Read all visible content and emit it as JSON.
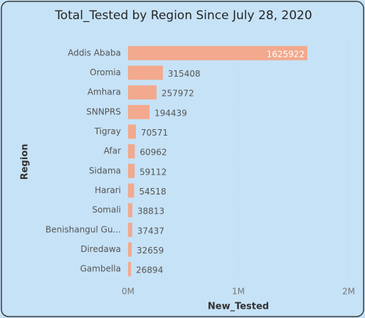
{
  "chart_data": {
    "type": "bar",
    "orientation": "horizontal",
    "title": "Total_Tested by Region Since July 28, 2020",
    "x_label": "New_Tested",
    "y_label": "Region",
    "categories": [
      "Addis Ababa",
      "Oromia",
      "Amhara",
      "SNNPRS",
      "Tigray",
      "Afar",
      "Sidama",
      "Harari",
      "Somali",
      "Benishangul Gu...",
      "Diredawa",
      "Gambella"
    ],
    "values": [
      1625922,
      315408,
      257972,
      194439,
      70571,
      60962,
      59112,
      54518,
      38813,
      37437,
      32659,
      26894
    ],
    "color": "#f2a98d",
    "xlim": [
      0,
      2000000
    ],
    "xticks": [
      {
        "value": 0,
        "label": "0M"
      },
      {
        "value": 1000000,
        "label": "1M"
      },
      {
        "value": 2000000,
        "label": "2M"
      }
    ],
    "grid": true
  }
}
